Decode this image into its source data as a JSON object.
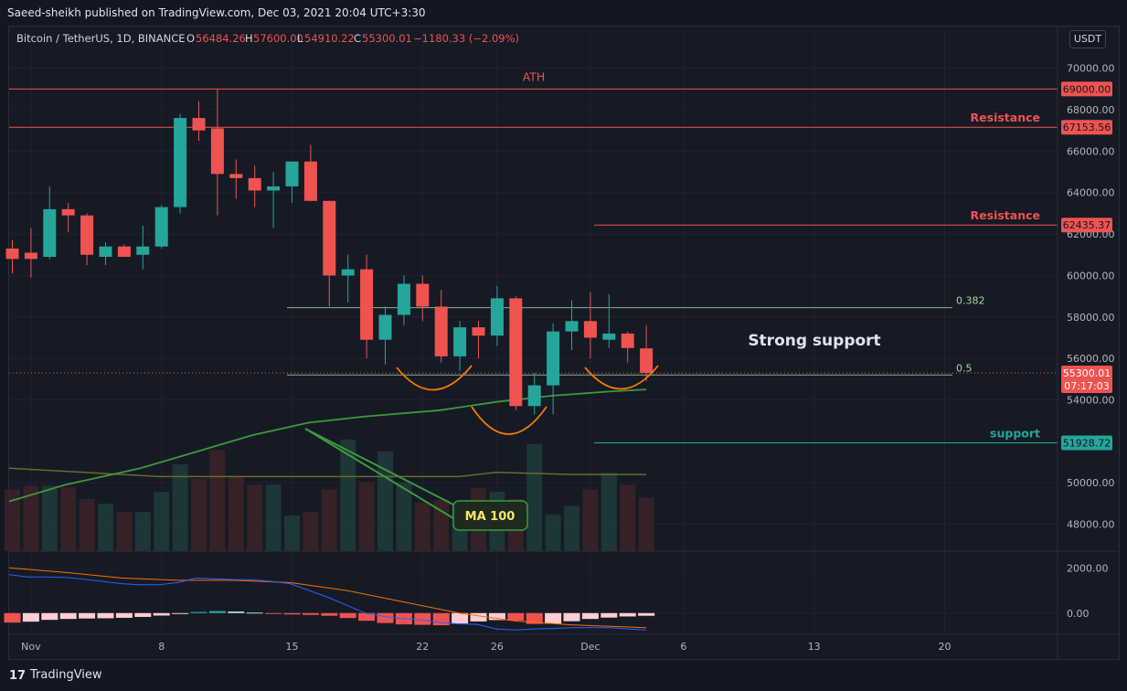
{
  "header": {
    "publisher": "Saeed-sheikh published on TradingView.com, Dec 03, 2021 20:04 UTC+3:30"
  },
  "symbol": {
    "name": "Bitcoin / TetherUS, 1D, BINANCE",
    "o_label": "O",
    "o_value": "56484.26",
    "h_label": "H",
    "h_value": "57600.00",
    "l_label": "L",
    "l_value": "54910.22",
    "c_label": "C",
    "c_value": "55300.01",
    "change": "−1180.33 (−2.09%)"
  },
  "currency_button": "USDT",
  "footer": {
    "logo": "17",
    "brand": "TradingView"
  },
  "colors": {
    "up": "#26a69a",
    "down": "#ef5350",
    "ma": "#3c9a3c",
    "ma_slow": "#6b6a2a",
    "macd": "#2962ff",
    "signal": "#ff6d00",
    "curve": "#f57c00",
    "fib": "#a5d6a7"
  },
  "chart_data": {
    "type": "candlestick",
    "price_axis": {
      "ylim": [
        46700,
        71000
      ],
      "ticks": [
        "70000.00",
        "68000.00",
        "66000.00",
        "64000.00",
        "62000.00",
        "60000.00",
        "58000.00",
        "56000.00",
        "54000.00",
        "50000.00",
        "48000.00"
      ]
    },
    "time_axis": {
      "ticks": [
        {
          "i": 1,
          "label": "Nov"
        },
        {
          "i": 8,
          "label": "8"
        },
        {
          "i": 15,
          "label": "15"
        },
        {
          "i": 22,
          "label": "22"
        },
        {
          "i": 26,
          "label": "26"
        },
        {
          "i": 31,
          "label": "Dec"
        },
        {
          "i": 36,
          "label": "6"
        },
        {
          "i": 43,
          "label": "13"
        },
        {
          "i": 50,
          "label": "20"
        }
      ]
    },
    "candles": [
      {
        "o": 61300,
        "h": 61700,
        "l": 60100,
        "c": 60800
      },
      {
        "o": 61100,
        "h": 62300,
        "l": 59900,
        "c": 60800
      },
      {
        "o": 60900,
        "h": 64300,
        "l": 60800,
        "c": 63200
      },
      {
        "o": 63200,
        "h": 63500,
        "l": 62100,
        "c": 62900
      },
      {
        "o": 62900,
        "h": 63000,
        "l": 60500,
        "c": 61000
      },
      {
        "o": 60900,
        "h": 61600,
        "l": 60500,
        "c": 61400
      },
      {
        "o": 61400,
        "h": 61500,
        "l": 61000,
        "c": 60900
      },
      {
        "o": 61000,
        "h": 62400,
        "l": 60300,
        "c": 61400
      },
      {
        "o": 61400,
        "h": 63400,
        "l": 61300,
        "c": 63300
      },
      {
        "o": 63300,
        "h": 67800,
        "l": 63000,
        "c": 67600
      },
      {
        "o": 67600,
        "h": 68400,
        "l": 66500,
        "c": 67000
      },
      {
        "o": 67100,
        "h": 69000,
        "l": 62900,
        "c": 64900
      },
      {
        "o": 64900,
        "h": 65600,
        "l": 63700,
        "c": 64700
      },
      {
        "o": 64700,
        "h": 65300,
        "l": 63300,
        "c": 64100
      },
      {
        "o": 64100,
        "h": 65000,
        "l": 62300,
        "c": 64300
      },
      {
        "o": 64300,
        "h": 65400,
        "l": 63500,
        "c": 65500
      },
      {
        "o": 65500,
        "h": 66300,
        "l": 63600,
        "c": 63600
      },
      {
        "o": 63600,
        "h": 63600,
        "l": 58500,
        "c": 60000
      },
      {
        "o": 60000,
        "h": 61000,
        "l": 58700,
        "c": 60300
      },
      {
        "o": 60300,
        "h": 61000,
        "l": 56000,
        "c": 56900
      },
      {
        "o": 56900,
        "h": 58500,
        "l": 55700,
        "c": 58100
      },
      {
        "o": 58100,
        "h": 60000,
        "l": 57600,
        "c": 59600
      },
      {
        "o": 59600,
        "h": 60000,
        "l": 57800,
        "c": 58500
      },
      {
        "o": 58500,
        "h": 59300,
        "l": 55800,
        "c": 56100
      },
      {
        "o": 56100,
        "h": 57800,
        "l": 55400,
        "c": 57500
      },
      {
        "o": 57500,
        "h": 57800,
        "l": 56000,
        "c": 57100
      },
      {
        "o": 57100,
        "h": 59500,
        "l": 56600,
        "c": 58900
      },
      {
        "o": 58900,
        "h": 59000,
        "l": 53500,
        "c": 53700
      },
      {
        "o": 53700,
        "h": 55300,
        "l": 53300,
        "c": 54700
      },
      {
        "o": 54700,
        "h": 57700,
        "l": 53300,
        "c": 57300
      },
      {
        "o": 57300,
        "h": 58800,
        "l": 56400,
        "c": 57800
      },
      {
        "o": 57800,
        "h": 59200,
        "l": 56000,
        "c": 57000
      },
      {
        "o": 56900,
        "h": 59100,
        "l": 56500,
        "c": 57200
      },
      {
        "o": 57200,
        "h": 57300,
        "l": 55800,
        "c": 56500
      },
      {
        "o": 56484,
        "h": 57600,
        "l": 54910,
        "c": 55300
      }
    ],
    "volume": [
      0.52,
      0.55,
      0.55,
      0.54,
      0.44,
      0.4,
      0.33,
      0.33,
      0.5,
      0.73,
      0.61,
      0.85,
      0.63,
      0.56,
      0.56,
      0.3,
      0.33,
      0.52,
      0.94,
      0.58,
      0.84,
      0.58,
      0.41,
      0.43,
      0.39,
      0.53,
      0.5,
      0.44,
      0.9,
      0.31,
      0.38,
      0.52,
      0.66,
      0.56,
      0.45
    ],
    "ma100": [
      [
        0,
        49100
      ],
      [
        3,
        49900
      ],
      [
        7,
        50700
      ],
      [
        10,
        51500
      ],
      [
        13,
        52300
      ],
      [
        16,
        52900
      ],
      [
        19,
        53200
      ],
      [
        23,
        53500
      ],
      [
        26,
        53900
      ],
      [
        29,
        54200
      ],
      [
        32,
        54400
      ],
      [
        34,
        54500
      ]
    ],
    "ma_slow": [
      [
        0,
        50700
      ],
      [
        4,
        50500
      ],
      [
        8,
        50300
      ],
      [
        12,
        50300
      ],
      [
        16,
        50300
      ],
      [
        20,
        50300
      ],
      [
        24,
        50300
      ],
      [
        26,
        50500
      ],
      [
        30,
        50400
      ],
      [
        34,
        50400
      ]
    ],
    "levels": [
      {
        "price": 69000,
        "label": "ATH",
        "tag": "69000.00",
        "color": "#ef5350",
        "from": 0
      },
      {
        "price": 67153.56,
        "label": "Resistance",
        "tag": "67153.56",
        "color": "#ef5350",
        "from": 0
      },
      {
        "price": 62435.37,
        "label": "Resistance",
        "tag": "62435.37",
        "color": "#ef5350",
        "from": 31.2
      },
      {
        "price": 51928.72,
        "label": "support",
        "tag": "51928.72",
        "color": "#26a69a",
        "from": 31.2
      }
    ],
    "fib": [
      {
        "price": 58450,
        "label": "0.382"
      },
      {
        "price": 55200,
        "label": "0.5"
      }
    ],
    "current_price": {
      "tag": "55300.01",
      "countdown": "07:17:03"
    },
    "annotations": {
      "strong_support": "Strong support",
      "ma_label": "MA 100"
    },
    "macd_panel": {
      "ticks": [
        "2000.00",
        "0.00"
      ],
      "ylim": [
        -900,
        2700
      ],
      "hist": [
        -420,
        -380,
        -300,
        -260,
        -240,
        -230,
        -210,
        -170,
        -110,
        -40,
        50,
        90,
        70,
        20,
        -40,
        -60,
        -80,
        -120,
        -220,
        -340,
        -440,
        -500,
        -520,
        -540,
        -460,
        -370,
        -310,
        -330,
        -480,
        -470,
        -360,
        -260,
        -200,
        -150,
        -120
      ],
      "macd": [
        [
          0,
          1700
        ],
        [
          1,
          1600
        ],
        [
          2,
          1600
        ],
        [
          3,
          1580
        ],
        [
          4,
          1500
        ],
        [
          5,
          1400
        ],
        [
          6,
          1300
        ],
        [
          7,
          1250
        ],
        [
          8,
          1250
        ],
        [
          9,
          1350
        ],
        [
          10,
          1550
        ],
        [
          11,
          1520
        ],
        [
          12,
          1480
        ],
        [
          13,
          1480
        ],
        [
          14,
          1400
        ],
        [
          15,
          1300
        ],
        [
          16,
          1000
        ],
        [
          17,
          700
        ],
        [
          18,
          350
        ],
        [
          19,
          0
        ],
        [
          20,
          -150
        ],
        [
          21,
          -250
        ],
        [
          22,
          -300
        ],
        [
          23,
          -420
        ],
        [
          24,
          -480
        ],
        [
          25,
          -500
        ],
        [
          26,
          -700
        ],
        [
          27,
          -750
        ],
        [
          28,
          -700
        ],
        [
          29,
          -680
        ],
        [
          30,
          -650
        ],
        [
          31,
          -640
        ],
        [
          32,
          -650
        ],
        [
          33,
          -700
        ],
        [
          34,
          -750
        ]
      ],
      "signal": [
        [
          0,
          2000
        ],
        [
          3,
          1800
        ],
        [
          6,
          1550
        ],
        [
          9,
          1450
        ],
        [
          12,
          1450
        ],
        [
          15,
          1350
        ],
        [
          18,
          1000
        ],
        [
          21,
          500
        ],
        [
          24,
          0
        ],
        [
          27,
          -350
        ],
        [
          30,
          -520
        ],
        [
          34,
          -650
        ]
      ]
    }
  }
}
